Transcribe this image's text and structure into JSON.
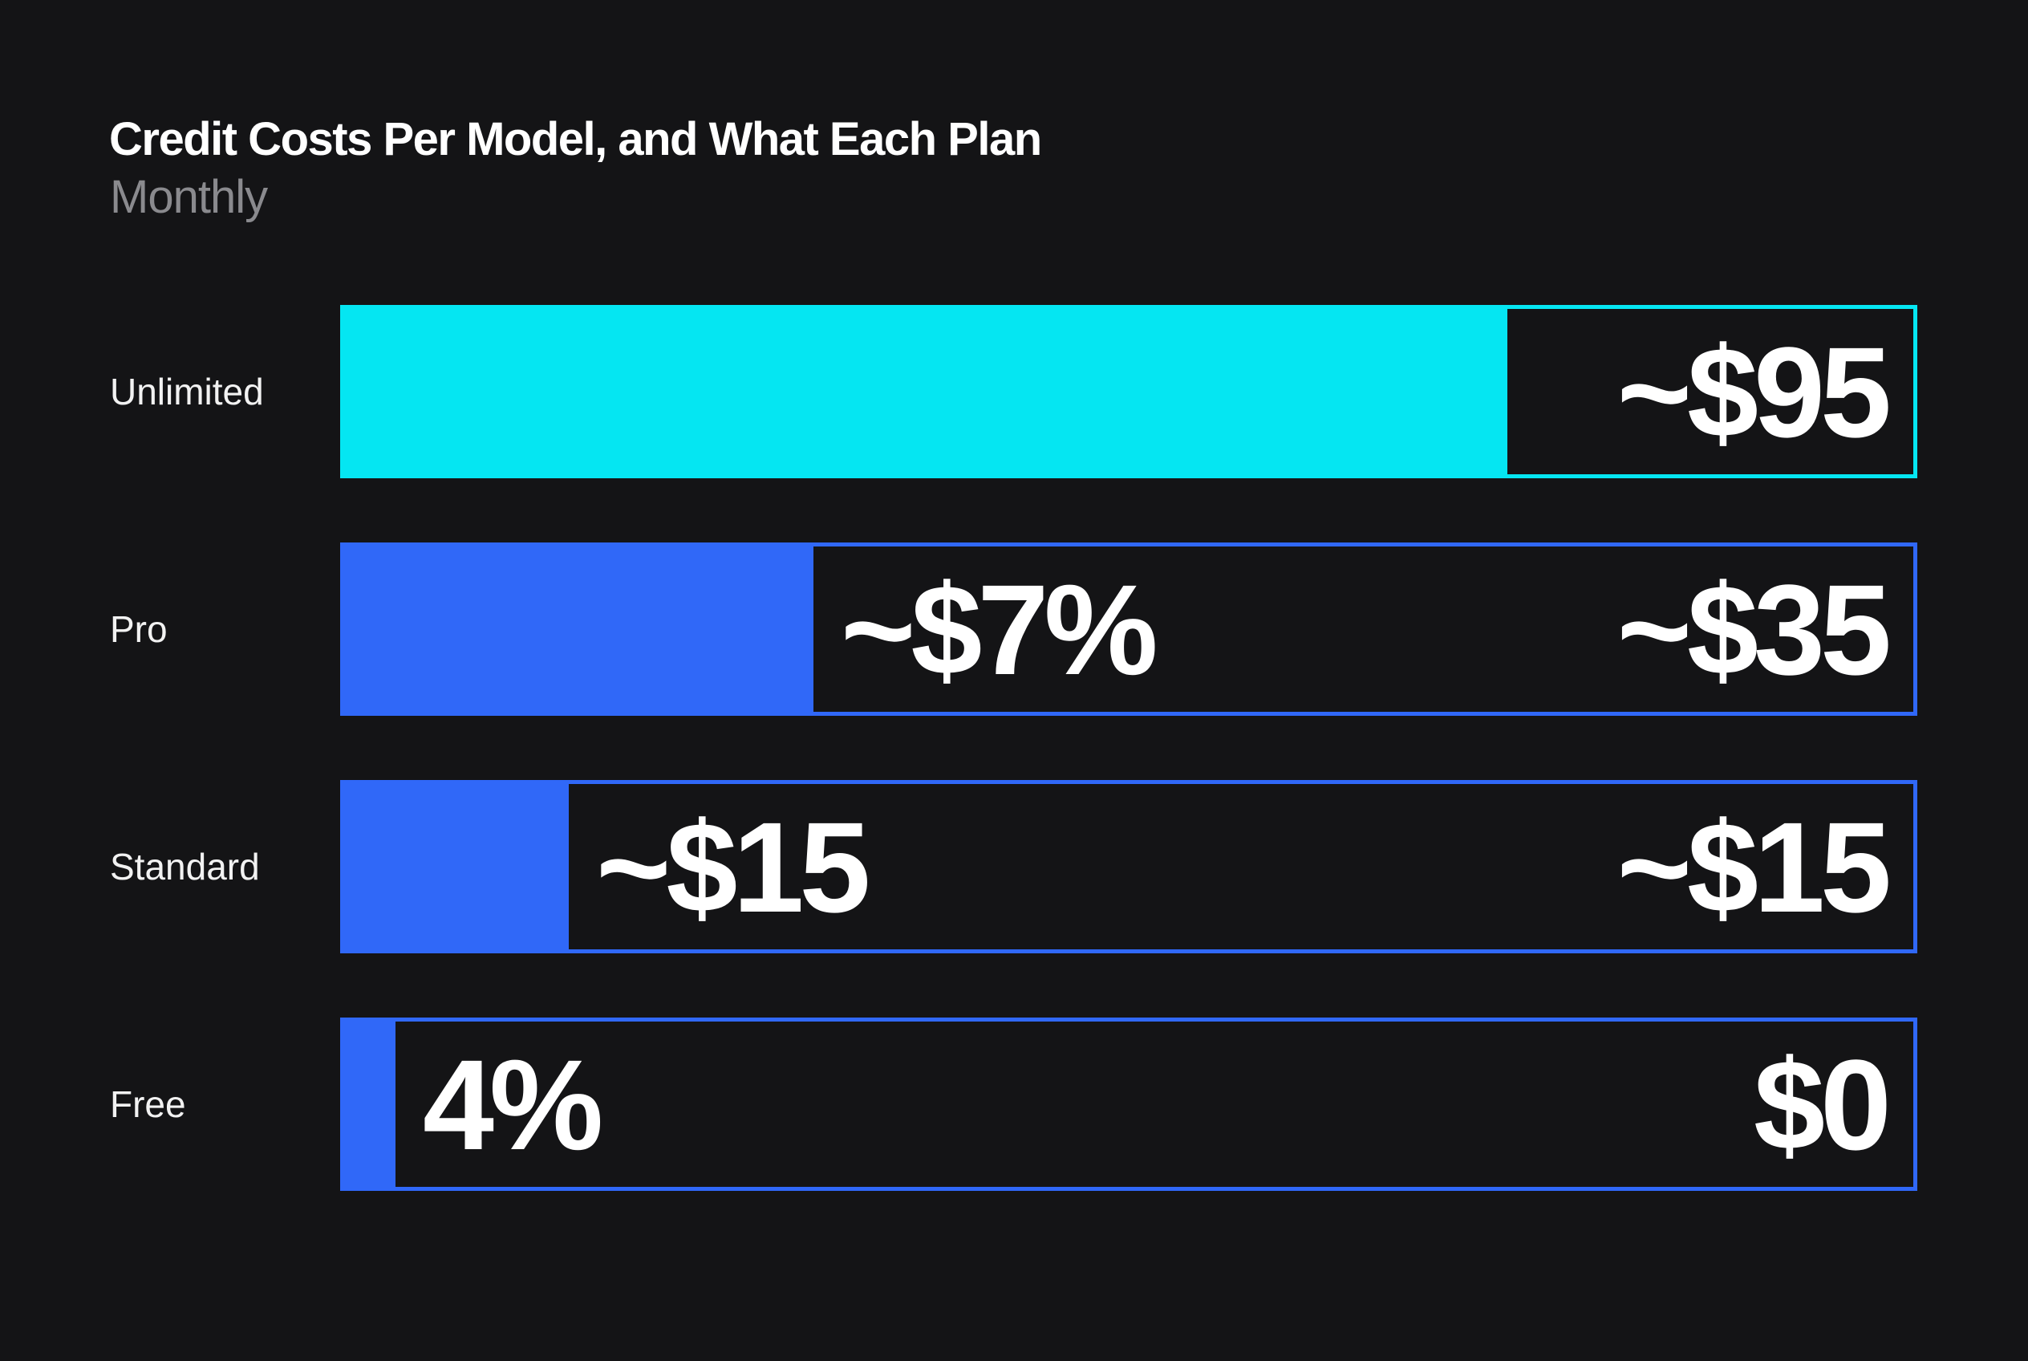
{
  "chart_data": {
    "type": "bar",
    "orientation": "horizontal",
    "title": "Credit Costs Per Model, and What Each Plan",
    "subtitle": "Monthly",
    "categories": [
      "Unlimited",
      "Pro",
      "Standard",
      "Free"
    ],
    "fill_fraction": [
      0.74,
      0.3,
      0.145,
      0.035
    ],
    "inner_labels": [
      "",
      "~$7%",
      "~$15",
      "4%"
    ],
    "end_labels": [
      "~$95",
      "~$35",
      "~$15",
      "$0"
    ],
    "colors": [
      "#05e6f2",
      "#3068f8",
      "#3068f8",
      "#3068f8"
    ],
    "background": "#141416",
    "grid": false,
    "legend": "none"
  }
}
